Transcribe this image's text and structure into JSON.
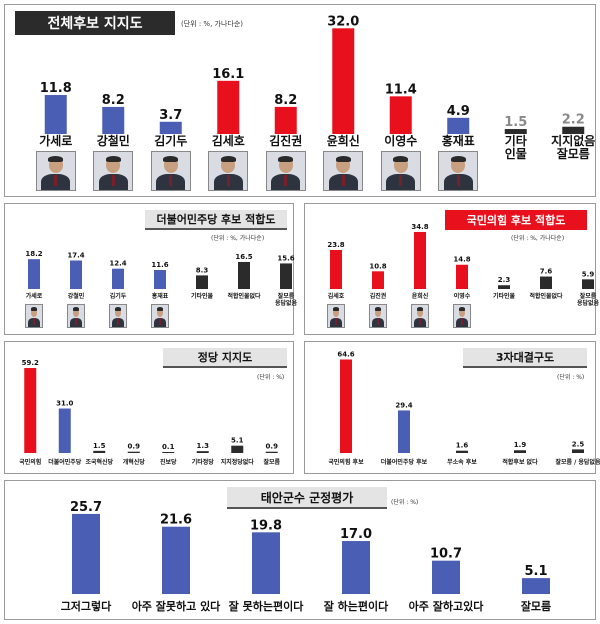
{
  "panels": {
    "p1": {
      "title": "전체후보 지지도",
      "unit": "(단위 : %, 가나다순)"
    },
    "p2": {
      "title": "더불어민주당 후보 적합도",
      "unit": "(단위 : %, 가나다순)"
    },
    "p3": {
      "title": "국민의힘 후보 적합도",
      "unit": "(단위 : %, 가나다순)"
    },
    "p4": {
      "title": "정당 지지도",
      "unit": "(단위 : %)"
    },
    "p5": {
      "title": "3자대결구도",
      "unit": "(단위 : %)"
    },
    "p6": {
      "title": "태안군수 군정평가",
      "unit": "(단위 : %)"
    }
  },
  "colors": {
    "blue": "#4a5fb4",
    "red": "#e8101c",
    "gray": "#8a8a8a",
    "dark": "#2b2b2b"
  },
  "chart_data": [
    {
      "id": "p1",
      "type": "bar",
      "title": "전체후보 지지도",
      "categories": [
        "가세로",
        "강철민",
        "김기두",
        "김세호",
        "김진권",
        "윤희신",
        "이영수",
        "홍재표",
        "기타 인물",
        "지지없음 잘모름"
      ],
      "values": [
        11.8,
        8.2,
        3.7,
        16.1,
        8.2,
        32.0,
        11.4,
        4.9,
        1.5,
        2.2
      ],
      "value_labels": [
        "11.8",
        "8.2",
        "3.7",
        "16.1",
        "8.2",
        "32.0",
        "11.4",
        "4.9",
        "1.5",
        "2.2"
      ],
      "bar_colors": [
        "blue",
        "blue",
        "blue",
        "red",
        "red",
        "red",
        "red",
        "blue",
        "dark",
        "dark"
      ],
      "photos": [
        true,
        true,
        true,
        true,
        true,
        true,
        true,
        true,
        false,
        false
      ],
      "ylim": [
        0,
        33
      ]
    },
    {
      "id": "p2",
      "type": "bar",
      "title": "더불어민주당 후보 적합도",
      "categories": [
        "가세로",
        "강철민",
        "김기두",
        "홍재표",
        "기타인물",
        "적합인물없다",
        "잘모름 응답없음"
      ],
      "values": [
        18.2,
        17.4,
        12.4,
        11.6,
        8.3,
        16.5,
        15.6
      ],
      "value_labels": [
        "18.2",
        "17.4",
        "12.4",
        "11.6",
        "8.3",
        "16.5",
        "15.6"
      ],
      "bar_colors": [
        "blue",
        "blue",
        "blue",
        "blue",
        "dark",
        "dark",
        "dark"
      ],
      "photos": [
        true,
        true,
        true,
        true,
        false,
        false,
        false
      ],
      "ylim": [
        0,
        36
      ]
    },
    {
      "id": "p3",
      "type": "bar",
      "title": "국민의힘 후보 적합도",
      "categories": [
        "김세호",
        "김진권",
        "윤희신",
        "이영수",
        "기타인물",
        "적합인물없다",
        "잘모름 응답없음"
      ],
      "values": [
        23.8,
        10.8,
        34.8,
        14.8,
        2.3,
        7.6,
        5.9
      ],
      "value_labels": [
        "23.8",
        "10.8",
        "34.8",
        "14.8",
        "2.3",
        "7.6",
        "5.9"
      ],
      "bar_colors": [
        "red",
        "red",
        "red",
        "red",
        "dark",
        "dark",
        "dark"
      ],
      "photos": [
        true,
        true,
        true,
        true,
        false,
        false,
        false
      ],
      "ylim": [
        0,
        36
      ]
    },
    {
      "id": "p4",
      "type": "bar",
      "title": "정당 지지도",
      "categories": [
        "국민의힘",
        "더불어민주당",
        "조국혁신당",
        "개혁신당",
        "진보당",
        "기타정당",
        "지지정당없다",
        "잘모름"
      ],
      "values": [
        59.2,
        31.0,
        1.5,
        0.9,
        0.1,
        1.3,
        5.1,
        0.9
      ],
      "value_labels": [
        "59.2",
        "31.0",
        "1.5",
        "0.9",
        "0.1",
        "1.3",
        "5.1",
        "0.9"
      ],
      "bar_colors": [
        "red",
        "blue",
        "dark",
        "dark",
        "dark",
        "dark",
        "dark",
        "dark"
      ],
      "photos": [
        false,
        false,
        false,
        false,
        false,
        false,
        false,
        false
      ],
      "ylim": [
        0,
        62
      ]
    },
    {
      "id": "p5",
      "type": "bar",
      "title": "3자대결구도",
      "categories": [
        "국민의힘 후보",
        "더불어민주당 후보",
        "무소속 후보",
        "적합후보 없다",
        "잘모름 / 응답없음"
      ],
      "values": [
        64.6,
        29.4,
        1.6,
        1.9,
        2.5
      ],
      "value_labels": [
        "64.6",
        "29.4",
        "1.6",
        "1.9",
        "2.5"
      ],
      "bar_colors": [
        "red",
        "blue",
        "dark",
        "dark",
        "dark"
      ],
      "photos": [
        false,
        false,
        false,
        false,
        false
      ],
      "ylim": [
        0,
        67
      ]
    },
    {
      "id": "p6",
      "type": "bar",
      "title": "태안군수 군정평가",
      "categories": [
        "그저그렇다",
        "아주 잘못하고 있다",
        "잘 못하는편이다",
        "잘 하는편이다",
        "아주 잘하고있다",
        "잘모름"
      ],
      "values": [
        25.7,
        21.6,
        19.8,
        17.0,
        10.7,
        5.1
      ],
      "value_labels": [
        "25.7",
        "21.6",
        "19.8",
        "17.0",
        "10.7",
        "5.1"
      ],
      "bar_colors": [
        "blue",
        "blue",
        "blue",
        "blue",
        "blue",
        "blue"
      ],
      "photos": [
        false,
        false,
        false,
        false,
        false,
        false
      ],
      "ylim": [
        0,
        26
      ]
    }
  ]
}
